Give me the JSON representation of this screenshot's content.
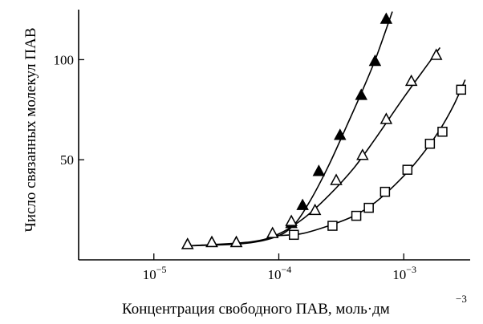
{
  "chart_data": {
    "type": "scatter",
    "title": "",
    "xlabel": "Концентрация свободного ПАВ, моль·дм",
    "xlabel_exponent": "−3",
    "ylabel": "Число связанных молекул ПАВ",
    "x_scale": "log",
    "xlim": [
      2.5e-06,
      0.0034
    ],
    "ylim": [
      0,
      125
    ],
    "x_ticks": [
      {
        "value": 1e-05,
        "base": "10",
        "exp": "−5"
      },
      {
        "value": 0.0001,
        "base": "10",
        "exp": "−4"
      },
      {
        "value": 0.001,
        "base": "10",
        "exp": "−3"
      }
    ],
    "y_ticks": [
      {
        "value": 50,
        "label": "50"
      },
      {
        "value": 100,
        "label": "100"
      }
    ],
    "grid": false,
    "legend": "none",
    "series": [
      {
        "marker": "filled-triangle",
        "points": [
          [
            1.86e-05,
            7.5
          ],
          [
            2.91e-05,
            8.5
          ],
          [
            4.57e-05,
            8.5
          ],
          [
            0.000126,
            18
          ],
          [
            0.000155,
            27
          ],
          [
            0.000209,
            44
          ],
          [
            0.000309,
            62
          ],
          [
            0.000457,
            82
          ],
          [
            0.000589,
            99
          ],
          [
            0.000724,
            120
          ]
        ],
        "curve": [
          [
            1.86e-05,
            7
          ],
          [
            5e-05,
            8
          ],
          [
            9e-05,
            11
          ],
          [
            0.00013,
            17
          ],
          [
            0.00018,
            30
          ],
          [
            0.00025,
            47
          ],
          [
            0.00035,
            67
          ],
          [
            0.00047,
            85
          ],
          [
            0.0006,
            101
          ],
          [
            0.00081,
            124
          ]
        ]
      },
      {
        "marker": "open-triangle",
        "points": [
          [
            1.86e-05,
            7.5
          ],
          [
            2.91e-05,
            8.5
          ],
          [
            4.57e-05,
            8.5
          ],
          [
            8.91e-05,
            13
          ],
          [
            0.000126,
            19
          ],
          [
            0.000195,
            24.5
          ],
          [
            0.000288,
            39.5
          ],
          [
            0.000468,
            52
          ],
          [
            0.000724,
            70
          ],
          [
            0.00115,
            89
          ],
          [
            0.00182,
            102
          ]
        ],
        "curve": [
          [
            1.86e-05,
            7
          ],
          [
            6e-05,
            9
          ],
          [
            0.0001,
            13
          ],
          [
            0.00016,
            21
          ],
          [
            0.00025,
            32
          ],
          [
            0.0004,
            46
          ],
          [
            0.0006,
            61
          ],
          [
            0.0009,
            77
          ],
          [
            0.0013,
            91
          ],
          [
            0.00195,
            106
          ]
        ]
      },
      {
        "marker": "open-square",
        "points": [
          [
            0.000132,
            12.5
          ],
          [
            0.000269,
            17
          ],
          [
            0.000417,
            22
          ],
          [
            0.000525,
            26
          ],
          [
            0.000708,
            34
          ],
          [
            0.00107,
            45
          ],
          [
            0.00162,
            58
          ],
          [
            0.00204,
            64
          ],
          [
            0.00288,
            85
          ]
        ],
        "curve": [
          [
            8.91e-05,
            12
          ],
          [
            0.00015,
            13
          ],
          [
            0.00025,
            17
          ],
          [
            0.0004,
            22
          ],
          [
            0.0006,
            29
          ],
          [
            0.0009,
            39
          ],
          [
            0.0013,
            50
          ],
          [
            0.0019,
            64
          ],
          [
            0.0025,
            77
          ],
          [
            0.0031,
            90
          ]
        ]
      }
    ]
  }
}
